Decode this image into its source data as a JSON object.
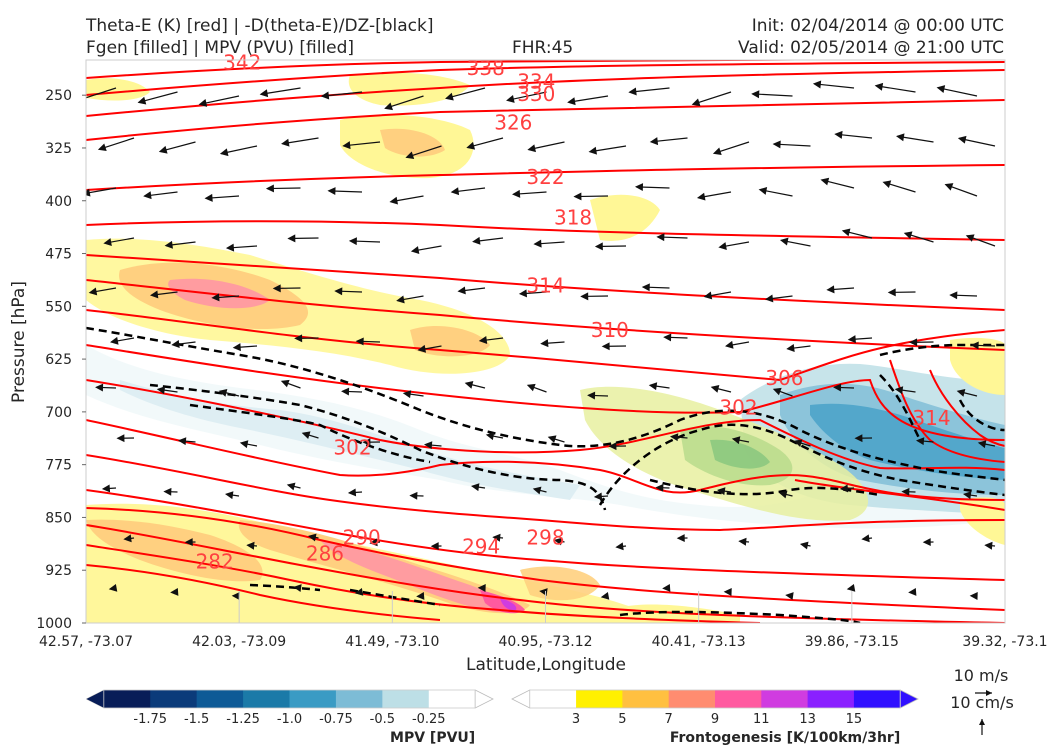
{
  "header": {
    "line1_left": "Theta-E (K) [red] | -D(theta-E)/DZ-[black]",
    "line2_left": "Fgen [filled] | MPV (PVU) [filled]",
    "fhr": "FHR:45",
    "init": "Init: 02/04/2014 @ 00:00 UTC",
    "valid": "Valid: 02/05/2014 @ 21:00 UTC"
  },
  "chart_data": {
    "type": "cross-section",
    "xlabel": "Latitude,Longitude",
    "ylabel": "Pressure [hPa]",
    "x_ticks": [
      "42.57, -73.07",
      "42.03, -73.09",
      "41.49, -73.10",
      "40.95, -73.12",
      "40.41, -73.13",
      "39.86, -73.15",
      "39.32, -73.1"
    ],
    "y_ticks": [
      250,
      325,
      400,
      475,
      550,
      625,
      700,
      775,
      850,
      925,
      1000
    ],
    "ylim": [
      200,
      1000
    ],
    "y_inverted": true,
    "theta_e_contour_labels": [
      {
        "value": "342",
        "x": 0.17,
        "p": 205
      },
      {
        "value": "338",
        "x": 0.435,
        "p": 213
      },
      {
        "value": "334",
        "x": 0.49,
        "p": 232
      },
      {
        "value": "330",
        "x": 0.49,
        "p": 250
      },
      {
        "value": "326",
        "x": 0.465,
        "p": 290
      },
      {
        "value": "322",
        "x": 0.5,
        "p": 368
      },
      {
        "value": "318",
        "x": 0.53,
        "p": 425
      },
      {
        "value": "314",
        "x": 0.5,
        "p": 522
      },
      {
        "value": "310",
        "x": 0.57,
        "p": 585
      },
      {
        "value": "306",
        "x": 0.76,
        "p": 653
      },
      {
        "value": "302",
        "x": 0.71,
        "p": 695
      },
      {
        "value": "314",
        "x": 0.92,
        "p": 710
      },
      {
        "value": "302",
        "x": 0.29,
        "p": 752
      },
      {
        "value": "298",
        "x": 0.5,
        "p": 880
      },
      {
        "value": "294",
        "x": 0.43,
        "p": 893
      },
      {
        "value": "290",
        "x": 0.3,
        "p": 880
      },
      {
        "value": "286",
        "x": 0.26,
        "p": 903
      },
      {
        "value": "282",
        "x": 0.14,
        "p": 914
      }
    ],
    "colorbars": [
      {
        "title": "MPV [PVU]",
        "labels": [
          "-1.75",
          "-1.5",
          "-1.25",
          "-1.0",
          "-0.75",
          "-0.5",
          "-0.25"
        ],
        "colors": [
          "#081d58",
          "#0b3b7a",
          "#0e5a96",
          "#1b7aa8",
          "#3a9bc4",
          "#7dbcd6",
          "#bddfe6",
          "#ffffff"
        ]
      },
      {
        "title": "Frontogenesis [K/100km/3hr]",
        "labels": [
          "3",
          "5",
          "7",
          "9",
          "11",
          "13",
          "15"
        ],
        "colors": [
          "#ffffff",
          "#fff000",
          "#ffc040",
          "#ff8c70",
          "#ff5aa0",
          "#d03ce0",
          "#8a20ff",
          "#3010ff"
        ]
      }
    ],
    "wind_scale": {
      "u": "10 m/s",
      "w": "10 cm/s"
    }
  },
  "colors": {
    "theta_e": "#ff0000",
    "stability": "#000000",
    "axes_bg": "#ffffff"
  }
}
